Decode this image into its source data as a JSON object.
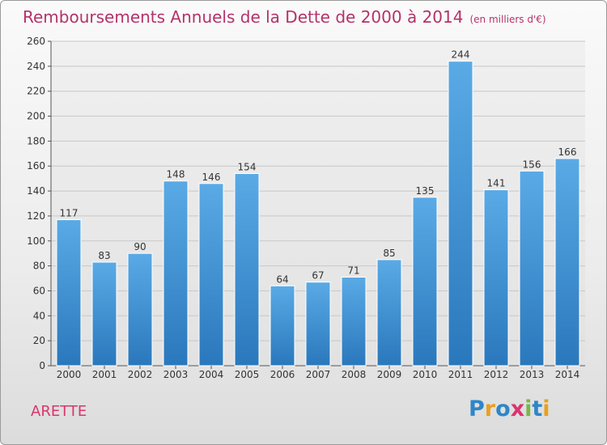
{
  "title": {
    "main": "Remboursements Annuels de la Dette de 2000 à 2014",
    "unit": "(en milliers d'€)"
  },
  "location": "ARETTE",
  "logo": {
    "text": "Proxiti",
    "letters": [
      {
        "ch": "P",
        "color": "#2e86c9"
      },
      {
        "ch": "r",
        "color": "#e8a020"
      },
      {
        "ch": "o",
        "color": "#2e86c9"
      },
      {
        "ch": "x",
        "color": "#d9356f"
      },
      {
        "ch": "i",
        "color": "#7ab648"
      },
      {
        "ch": "t",
        "color": "#2e86c9"
      },
      {
        "ch": "i",
        "color": "#e8a020"
      }
    ]
  },
  "colors": {
    "title": "#b5326a",
    "bar_top": "#5aaae6",
    "bar_bottom": "#2a78bc",
    "grid": "#c8c8c8"
  },
  "chart_data": {
    "type": "bar",
    "categories": [
      "2000",
      "2001",
      "2002",
      "2003",
      "2004",
      "2005",
      "2006",
      "2007",
      "2008",
      "2009",
      "2010",
      "2011",
      "2012",
      "2013",
      "2014"
    ],
    "values": [
      117,
      83,
      90,
      148,
      146,
      154,
      64,
      67,
      71,
      85,
      135,
      244,
      141,
      156,
      166
    ],
    "ylim": [
      0,
      260
    ],
    "yticks": [
      0,
      20,
      40,
      60,
      80,
      100,
      120,
      140,
      160,
      180,
      200,
      220,
      240,
      260
    ],
    "grid": true,
    "data_labels": true
  }
}
